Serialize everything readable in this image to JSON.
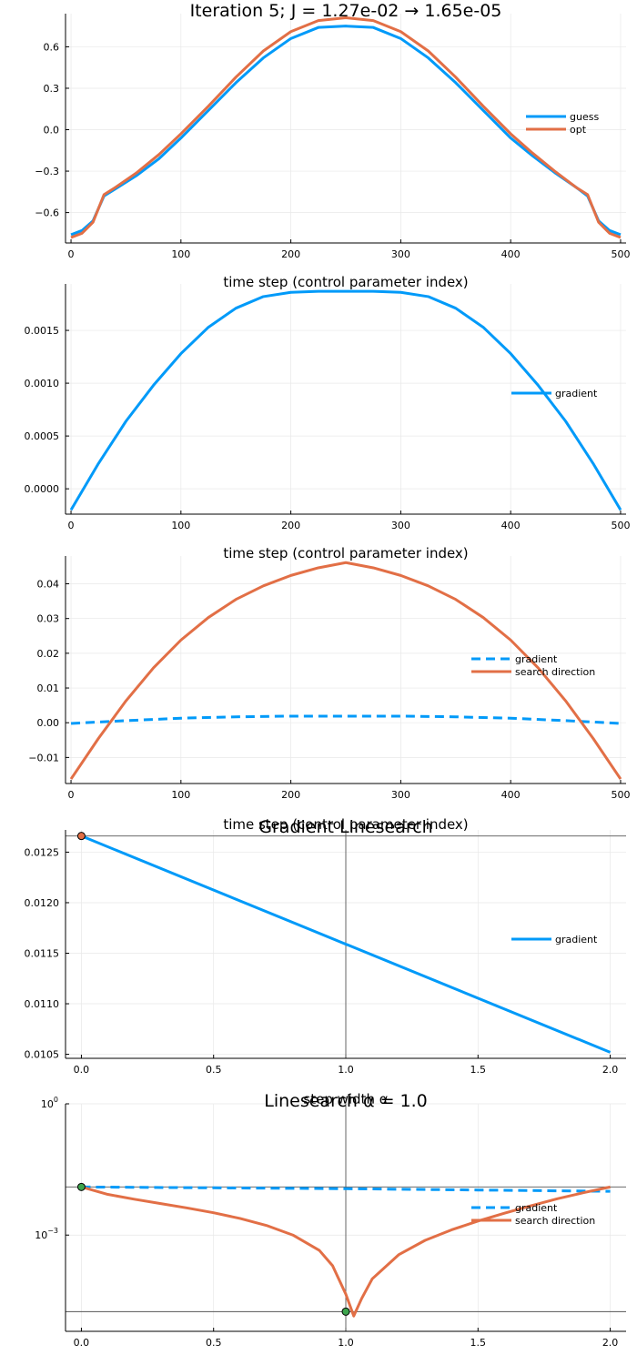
{
  "colors": {
    "blue": "#009AF9",
    "orange": "#E26F46",
    "grid": "#E8E8E8",
    "axis": "#000000",
    "marker_orange": "#E26F46",
    "marker_green": "#3DA44D"
  },
  "chart_data": [
    {
      "id": "panel1",
      "type": "line",
      "title": "Iteration 5; J = 1.27e-02 → 1.65e-05",
      "xlabel": "time step (control parameter index)",
      "ylabel": "",
      "xlim": [
        -5,
        505
      ],
      "ylim": [
        -0.82,
        0.84
      ],
      "xticks": [
        0,
        100,
        200,
        300,
        400,
        500
      ],
      "xtick_labels": [
        "0",
        "100",
        "200",
        "300",
        "400",
        "500"
      ],
      "yticks": [
        -0.6,
        -0.3,
        0.0,
        0.3,
        0.6
      ],
      "ytick_labels": [
        "−0.6",
        "−0.3",
        "0.0",
        "0.3",
        "0.6"
      ],
      "legend": "right",
      "series": [
        {
          "name": "guess",
          "color": "#009AF9",
          "dash": "",
          "x": [
            0,
            10,
            20,
            30,
            40,
            60,
            80,
            100,
            125,
            150,
            175,
            200,
            225,
            250,
            275,
            300,
            325,
            350,
            375,
            400,
            420,
            440,
            460,
            470,
            480,
            490,
            500
          ],
          "y": [
            -0.76,
            -0.73,
            -0.66,
            -0.48,
            -0.43,
            -0.33,
            -0.21,
            -0.06,
            0.14,
            0.34,
            0.52,
            0.66,
            0.74,
            0.75,
            0.74,
            0.66,
            0.52,
            0.34,
            0.14,
            -0.06,
            -0.19,
            -0.31,
            -0.42,
            -0.48,
            -0.66,
            -0.73,
            -0.76
          ]
        },
        {
          "name": "opt",
          "color": "#E26F46",
          "dash": "",
          "x": [
            0,
            10,
            20,
            30,
            40,
            60,
            80,
            100,
            125,
            150,
            175,
            200,
            225,
            250,
            275,
            300,
            325,
            350,
            375,
            400,
            420,
            440,
            460,
            470,
            480,
            490,
            500
          ],
          "y": [
            -0.78,
            -0.75,
            -0.67,
            -0.47,
            -0.42,
            -0.31,
            -0.18,
            -0.03,
            0.17,
            0.38,
            0.57,
            0.71,
            0.79,
            0.81,
            0.79,
            0.71,
            0.57,
            0.38,
            0.17,
            -0.03,
            -0.17,
            -0.3,
            -0.42,
            -0.47,
            -0.67,
            -0.75,
            -0.78
          ]
        }
      ]
    },
    {
      "id": "panel2",
      "type": "line",
      "title": "",
      "xlabel": "time step (control parameter index)",
      "ylabel": "",
      "xlim": [
        -5,
        505
      ],
      "ylim": [
        -0.00024,
        0.00194
      ],
      "xticks": [
        0,
        100,
        200,
        300,
        400,
        500
      ],
      "xtick_labels": [
        "0",
        "100",
        "200",
        "300",
        "400",
        "500"
      ],
      "yticks": [
        0.0,
        0.0005,
        0.001,
        0.0015
      ],
      "ytick_labels": [
        "0.0000",
        "0.0005",
        "0.0010",
        "0.0015"
      ],
      "legend": "right",
      "series": [
        {
          "name": "gradient",
          "color": "#009AF9",
          "dash": "",
          "x": [
            0,
            25,
            50,
            75,
            100,
            125,
            150,
            175,
            200,
            225,
            250,
            275,
            300,
            325,
            350,
            375,
            400,
            425,
            450,
            475,
            500
          ],
          "y": [
            -0.0002,
            0.00024,
            0.00064,
            0.00098,
            0.00128,
            0.00153,
            0.00171,
            0.00182,
            0.00186,
            0.00187,
            0.00187,
            0.00187,
            0.00186,
            0.00182,
            0.00171,
            0.00153,
            0.00128,
            0.00098,
            0.00064,
            0.00024,
            -0.0002
          ]
        }
      ]
    },
    {
      "id": "panel3",
      "type": "line",
      "title": "",
      "xlabel": "time step (control parameter index)",
      "ylabel": "",
      "xlim": [
        -5,
        505
      ],
      "ylim": [
        -0.0175,
        0.048
      ],
      "xticks": [
        0,
        100,
        200,
        300,
        400,
        500
      ],
      "xtick_labels": [
        "0",
        "100",
        "200",
        "300",
        "400",
        "500"
      ],
      "yticks": [
        -0.01,
        0.0,
        0.01,
        0.02,
        0.03,
        0.04
      ],
      "ytick_labels": [
        "−0.01",
        "0.00",
        "0.01",
        "0.02",
        "0.03",
        "0.04"
      ],
      "legend": "right",
      "series": [
        {
          "name": "gradient",
          "color": "#009AF9",
          "dash": "10,6",
          "x": [
            0,
            50,
            100,
            150,
            200,
            250,
            300,
            350,
            400,
            450,
            500
          ],
          "y": [
            -0.0002,
            0.0006,
            0.0013,
            0.0017,
            0.0019,
            0.0019,
            0.0019,
            0.0017,
            0.0013,
            0.0006,
            -0.0002
          ]
        },
        {
          "name": "search direction",
          "color": "#E26F46",
          "dash": "",
          "x": [
            0,
            25,
            50,
            75,
            100,
            125,
            150,
            175,
            200,
            225,
            250,
            275,
            300,
            325,
            350,
            375,
            400,
            425,
            450,
            475,
            500
          ],
          "y": [
            -0.0162,
            -0.0045,
            0.0063,
            0.0158,
            0.0238,
            0.0303,
            0.0355,
            0.0394,
            0.0424,
            0.0446,
            0.0461,
            0.0446,
            0.0424,
            0.0394,
            0.0355,
            0.0303,
            0.0238,
            0.0158,
            0.0063,
            -0.0045,
            -0.0162
          ]
        }
      ]
    },
    {
      "id": "panel4",
      "type": "line",
      "title": "Gradient Linesearch",
      "xlabel": "step width α",
      "ylabel": "",
      "xlim": [
        -0.06,
        2.06
      ],
      "ylim": [
        0.01046,
        0.01272
      ],
      "xticks": [
        0.0,
        0.5,
        1.0,
        1.5,
        2.0
      ],
      "xtick_labels": [
        "0.0",
        "0.5",
        "1.0",
        "1.5",
        "2.0"
      ],
      "yticks": [
        0.0105,
        0.011,
        0.0115,
        0.012,
        0.0125
      ],
      "ytick_labels": [
        "0.0105",
        "0.0110",
        "0.0115",
        "0.0120",
        "0.0125"
      ],
      "legend": "right",
      "hlines": [
        0.01266
      ],
      "vlines": [
        1.0
      ],
      "markers": [
        {
          "x": 0.0,
          "y": 0.01266,
          "color": "#E26F46"
        }
      ],
      "series": [
        {
          "name": "gradient",
          "color": "#009AF9",
          "dash": "",
          "x": [
            0.0,
            2.0
          ],
          "y": [
            0.01266,
            0.01052
          ]
        }
      ]
    },
    {
      "id": "panel5",
      "type": "line",
      "title": "Linesearch α = 1.0",
      "xlabel": "",
      "ylabel": "",
      "log_y": true,
      "xlim": [
        -0.06,
        2.06
      ],
      "ylim_log10": [
        -5.2,
        0.0
      ],
      "xticks": [
        0.0,
        0.5,
        1.0,
        1.5,
        2.0
      ],
      "xtick_labels": [
        "0.0",
        "0.5",
        "1.0",
        "1.5",
        "2.0"
      ],
      "yticks_log10": [
        -3,
        0
      ],
      "ytick_base": "10",
      "ytick_exps": [
        "−3",
        "0"
      ],
      "legend": "right",
      "hlines_log10": [
        -1.9,
        -4.75
      ],
      "vlines": [
        1.0
      ],
      "markers": [
        {
          "x": 0.0,
          "y_log10": -1.9,
          "color": "#3DA44D"
        },
        {
          "x": 1.0,
          "y_log10": -4.75,
          "color": "#3DA44D"
        }
      ],
      "series": [
        {
          "name": "gradient",
          "color": "#009AF9",
          "dash": "10,6",
          "x": [
            0.0,
            0.5,
            1.0,
            1.5,
            2.0
          ],
          "y_log10": [
            -1.9,
            -1.92,
            -1.94,
            -1.97,
            -2.0
          ]
        },
        {
          "name": "search direction",
          "color": "#E26F46",
          "dash": "",
          "x": [
            0.0,
            0.1,
            0.2,
            0.3,
            0.4,
            0.5,
            0.6,
            0.7,
            0.8,
            0.9,
            0.95,
            1.0,
            1.03,
            1.06,
            1.1,
            1.2,
            1.3,
            1.4,
            1.5,
            1.6,
            1.7,
            1.8,
            1.9,
            2.0
          ],
          "y_log10": [
            -1.9,
            -2.07,
            -2.18,
            -2.28,
            -2.38,
            -2.49,
            -2.62,
            -2.78,
            -3.0,
            -3.35,
            -3.7,
            -4.35,
            -4.85,
            -4.45,
            -4.0,
            -3.45,
            -3.12,
            -2.88,
            -2.68,
            -2.5,
            -2.33,
            -2.17,
            -2.03,
            -1.9
          ]
        }
      ]
    }
  ]
}
